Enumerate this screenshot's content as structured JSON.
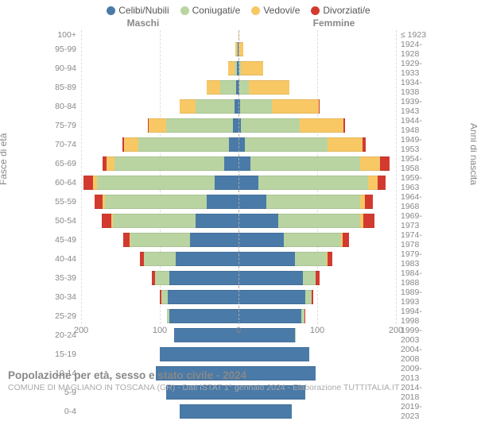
{
  "chart": {
    "type": "population-pyramid",
    "legend": [
      {
        "label": "Celibi/Nubili",
        "color": "#4a7aa8"
      },
      {
        "label": "Coniugati/e",
        "color": "#b9d4a1"
      },
      {
        "label": "Vedovi/e",
        "color": "#f8c865"
      },
      {
        "label": "Divorziati/e",
        "color": "#d33a2f"
      }
    ],
    "male_label": "Maschi",
    "female_label": "Femmine",
    "y_left_label": "Fasce di età",
    "y_right_label": "Anni di nascita",
    "x_max": 200,
    "x_ticks": [
      200,
      100,
      0,
      100,
      200
    ],
    "age_groups": [
      "100+",
      "95-99",
      "90-94",
      "85-89",
      "80-84",
      "75-79",
      "70-74",
      "65-69",
      "60-64",
      "55-59",
      "50-54",
      "45-49",
      "40-44",
      "35-39",
      "30-34",
      "25-29",
      "20-24",
      "15-19",
      "10-14",
      "5-9",
      "0-4"
    ],
    "birth_years": [
      "≤ 1923",
      "1924-1928",
      "1929-1933",
      "1934-1938",
      "1939-1943",
      "1944-1948",
      "1949-1953",
      "1954-1958",
      "1959-1963",
      "1964-1968",
      "1969-1973",
      "1974-1978",
      "1979-1983",
      "1984-1988",
      "1989-1993",
      "1994-1998",
      "1999-2003",
      "2004-2008",
      "2009-2013",
      "2014-2018",
      "2019-2023"
    ],
    "data": {
      "male": [
        [
          0,
          0,
          0,
          0
        ],
        [
          1,
          1,
          2,
          0
        ],
        [
          2,
          3,
          8,
          0
        ],
        [
          3,
          20,
          17,
          0
        ],
        [
          5,
          50,
          20,
          0
        ],
        [
          7,
          85,
          22,
          1
        ],
        [
          12,
          115,
          18,
          3
        ],
        [
          18,
          140,
          10,
          5
        ],
        [
          30,
          150,
          5,
          12
        ],
        [
          40,
          130,
          3,
          10
        ],
        [
          55,
          105,
          2,
          12
        ],
        [
          62,
          75,
          1,
          8
        ],
        [
          80,
          40,
          0,
          5
        ],
        [
          88,
          18,
          0,
          4
        ],
        [
          90,
          8,
          0,
          2
        ],
        [
          88,
          3,
          0,
          0
        ],
        [
          82,
          0,
          0,
          0
        ],
        [
          100,
          0,
          0,
          0
        ],
        [
          105,
          0,
          0,
          0
        ],
        [
          92,
          0,
          0,
          0
        ],
        [
          75,
          0,
          0,
          0
        ]
      ],
      "female": [
        [
          0,
          0,
          1,
          0
        ],
        [
          0,
          0,
          6,
          0
        ],
        [
          1,
          2,
          28,
          0
        ],
        [
          1,
          12,
          52,
          0
        ],
        [
          2,
          40,
          60,
          1
        ],
        [
          3,
          75,
          55,
          2
        ],
        [
          8,
          105,
          45,
          4
        ],
        [
          15,
          140,
          25,
          12
        ],
        [
          25,
          140,
          12,
          10
        ],
        [
          35,
          120,
          6,
          10
        ],
        [
          50,
          105,
          4,
          14
        ],
        [
          58,
          72,
          2,
          8
        ],
        [
          72,
          40,
          1,
          6
        ],
        [
          82,
          16,
          0,
          5
        ],
        [
          85,
          8,
          0,
          2
        ],
        [
          80,
          4,
          0,
          1
        ],
        [
          72,
          1,
          0,
          0
        ],
        [
          90,
          0,
          0,
          0
        ],
        [
          98,
          0,
          0,
          0
        ],
        [
          85,
          0,
          0,
          0
        ],
        [
          68,
          0,
          0,
          0
        ]
      ]
    },
    "colors": {
      "single": "#4a7aa8",
      "married": "#b9d4a1",
      "widowed": "#f8c865",
      "divorced": "#d33a2f",
      "background": "#ffffff",
      "grid": "#dddddd",
      "center_line": "#aaaaaa",
      "text": "#888888"
    },
    "bar_height_pct": 78
  },
  "title": "Popolazione per età, sesso e stato civile - 2024",
  "source": "COMUNE DI MAGLIANO IN TOSCANA (GR) - Dati ISTAT 1° gennaio 2024 - Elaborazione TUTTITALIA.IT"
}
